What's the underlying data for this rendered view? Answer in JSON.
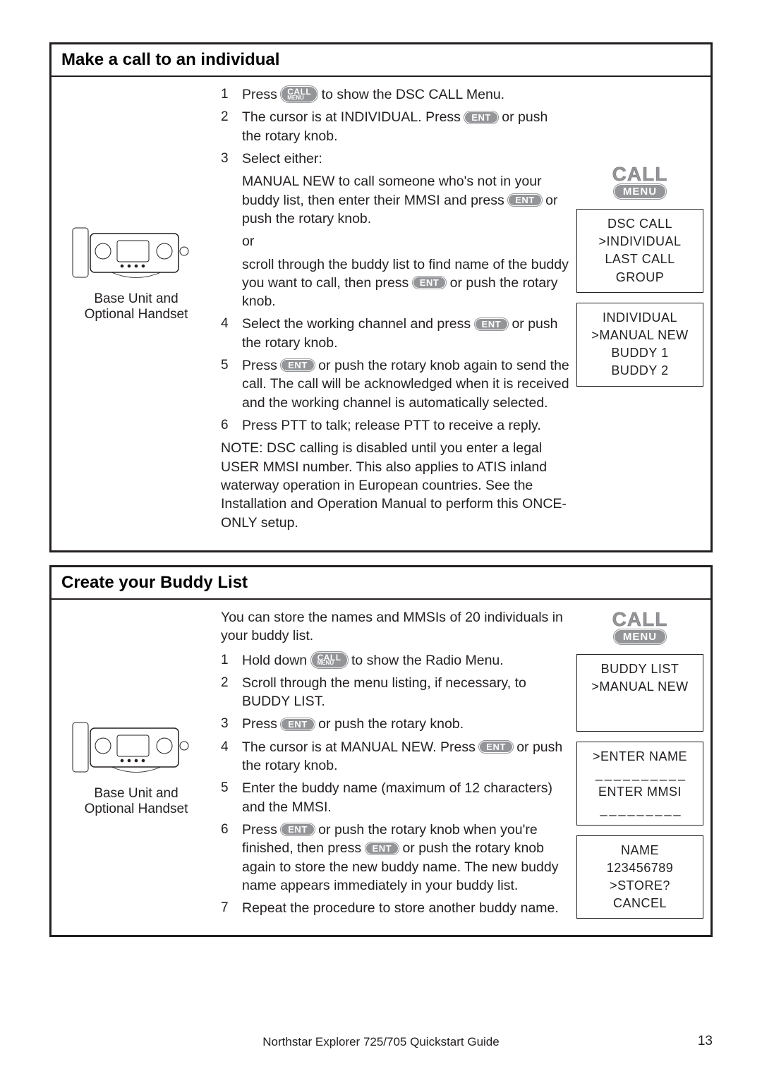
{
  "section1": {
    "title": "Make a call to an individual",
    "leftCaption1": "Base Unit and",
    "leftCaption2": "Optional Handset",
    "steps": [
      {
        "n": "1",
        "pre": "Press ",
        "btn": "CALL",
        "post": " to show the DSC CALL Menu."
      },
      {
        "n": "2",
        "pre": "The cursor is at INDIVIDUAL. Press ",
        "btn": "ENT",
        "post": " or push the rotary knob."
      },
      {
        "n": "3",
        "text": "Select either:"
      },
      {
        "sub": true,
        "pre": "MANUAL NEW to call someone who's not in your buddy list, then enter their MMSI and press ",
        "btn": "ENT",
        "post": " or push the rotary knob."
      },
      {
        "sub": true,
        "text": "or"
      },
      {
        "sub": true,
        "pre": "scroll through the buddy list to find name of the buddy you want to call, then press ",
        "btn": "ENT",
        "post": " or push the rotary knob."
      },
      {
        "n": "4",
        "pre": "Select the working channel and press ",
        "btn": "ENT",
        "post": " or push the rotary knob."
      },
      {
        "n": "5",
        "pre": "Press ",
        "btn": "ENT",
        "post": " or push the rotary knob again to send the call. The call will be acknowledged when it is received and the working channel is automatically selected."
      },
      {
        "n": "6",
        "text": "Press PTT to talk; release PTT to receive a reply."
      }
    ],
    "note": "NOTE: DSC calling is disabled until you enter a legal USER MMSI number. This also applies to ATIS inland waterway operation in European countries. See the Installation and Operation Manual to perform this ONCE-ONLY setup.",
    "callBadge": {
      "t1": "CALL",
      "t2": "MENU"
    },
    "screen1": {
      "l1": "DSC CALL",
      "l2": ">INDIVIDUAL",
      "l3": "LAST CALL",
      "l4": "GROUP"
    },
    "screen2": {
      "l1": "INDIVIDUAL",
      "l2": ">MANUAL NEW",
      "l3": "BUDDY 1",
      "l4": "BUDDY 2"
    }
  },
  "section2": {
    "title": "Create your Buddy List",
    "leftCaption1": "Base Unit and",
    "leftCaption2": "Optional Handset",
    "intro": "You can store the names and MMSIs of 20 individuals in your buddy list.",
    "steps": [
      {
        "n": "1",
        "pre": "Hold down ",
        "btn": "CALL",
        "post": " to show the Radio Menu."
      },
      {
        "n": "2",
        "text": "Scroll through the menu listing, if necessary, to BUDDY LIST."
      },
      {
        "n": "3",
        "pre": "Press ",
        "btn": "ENT",
        "post": " or push the rotary knob."
      },
      {
        "n": "4",
        "pre": "The cursor is at MANUAL NEW.  Press ",
        "btn": "ENT",
        "post": " or push the rotary knob."
      },
      {
        "n": "5",
        "text": "Enter the buddy name (maximum of 12 characters) and the MMSI."
      },
      {
        "n": "6",
        "pre": "Press ",
        "btn": "ENT",
        "post": " or push the rotary knob when you're finished, then press ",
        "btn2": "ENT",
        "post2": " or push the rotary knob again to store the new buddy name. The new buddy name appears immediately in your buddy list."
      },
      {
        "n": "7",
        "text": "Repeat the procedure to store another buddy name."
      }
    ],
    "callBadge": {
      "t1": "CALL",
      "t2": "MENU"
    },
    "screen1": {
      "l1": "BUDDY LIST",
      "l2": ">MANUAL NEW",
      "l3": "",
      "l4": ""
    },
    "screen2": {
      "l1": ">ENTER NAME",
      "l2": "_ _ _ _ _ _ _ _ _ _",
      "l3": "ENTER MMSI",
      "l4": "_ _ _ _ _ _ _ _ _"
    },
    "screen3": {
      "l1": "NAME",
      "l2": "123456789",
      "l3": ">STORE?",
      "l4": "CANCEL"
    }
  },
  "footer": "Northstar Explorer 725/705 Quickstart Guide",
  "pageNum": "13",
  "colors": {
    "border": "#231f20",
    "grey": "#939598"
  }
}
